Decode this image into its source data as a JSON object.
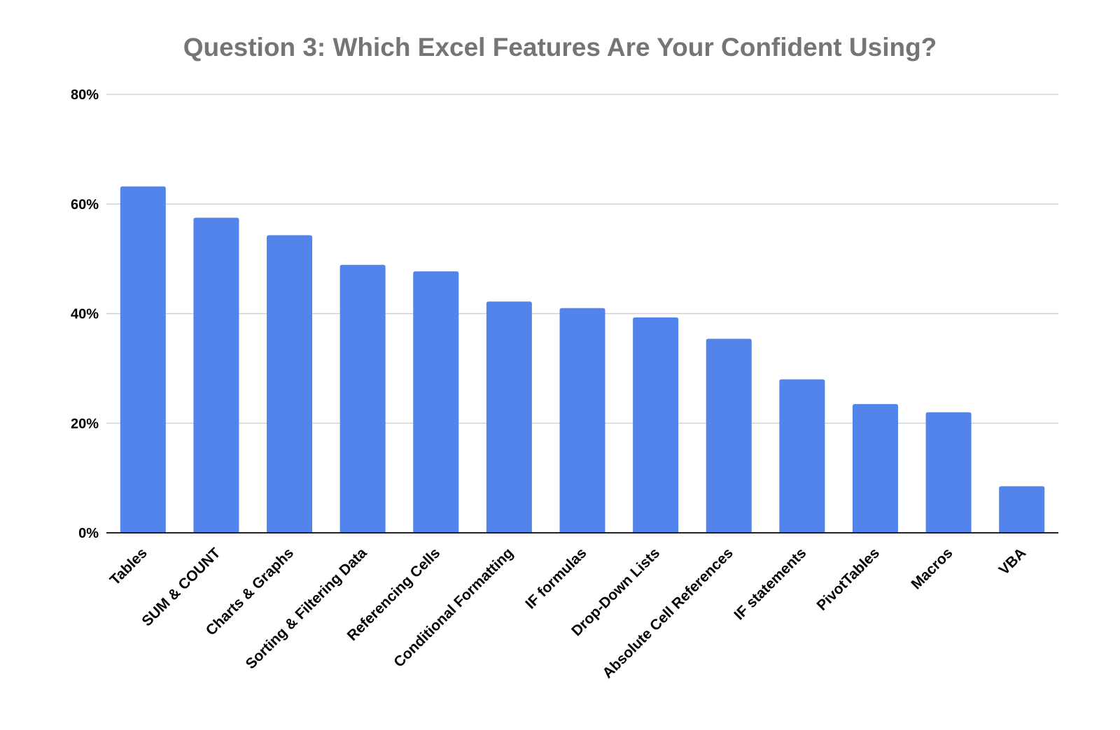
{
  "chart_data": {
    "type": "bar",
    "title": "Question 3: Which Excel Features Are Your Confident Using?",
    "xlabel": "",
    "ylabel": "",
    "categories": [
      "Tables",
      "SUM & COUNT",
      "Charts & Graphs",
      "Sorting & Filtering Data",
      "Referencing Cells",
      "Conditional Formatting",
      "IF formulas",
      "Drop-Down Lists",
      "Absolute Cell References",
      "IF statements",
      "PivotTables",
      "Macros",
      "VBA"
    ],
    "values": [
      63.2,
      57.5,
      54.3,
      48.9,
      47.7,
      42.2,
      41.0,
      39.3,
      35.4,
      28.0,
      23.5,
      22.0,
      8.5
    ],
    "ylim": [
      0,
      80
    ],
    "yticks": [
      0,
      20,
      40,
      60,
      80
    ],
    "ytick_labels": [
      "0%",
      "20%",
      "40%",
      "60%",
      "80%"
    ],
    "grid": true,
    "legend": "none",
    "colors": {
      "bar": "#5284ec",
      "title": "#757575",
      "gridline": "#cccccc",
      "axis": "#222222",
      "text": "#000000"
    }
  }
}
